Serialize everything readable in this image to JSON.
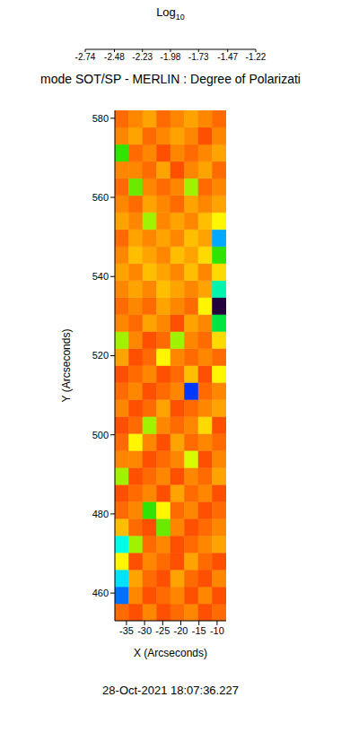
{
  "chart_data": {
    "type": "heatmap",
    "title": "mode SOT/SP - MERLIN : Degree of Polarizati",
    "annotations": [
      "28-Oct-2021 18:07:36.227"
    ],
    "x_label": "X (Arcseconds)",
    "y_label": "Y (Arcseconds)",
    "xlim": [
      -38.2,
      -7.5
    ],
    "ylim": [
      453,
      582
    ],
    "xticks": [
      -35,
      -30,
      -25,
      -20,
      -15,
      -10
    ],
    "yticks": [
      460,
      480,
      500,
      520,
      540,
      560,
      580
    ],
    "x_edges": [
      -38.2,
      -34.36,
      -30.53,
      -26.69,
      -22.85,
      -19.01,
      -15.18,
      -11.34,
      -7.5
    ],
    "y_edges": [
      453,
      457.3,
      461.6,
      465.9,
      470.2,
      474.5,
      478.8,
      483.1,
      487.4,
      491.7,
      496,
      500.3,
      504.6,
      508.9,
      513.2,
      517.5,
      521.8,
      526.1,
      530.4,
      534.7,
      539,
      543.3,
      547.6,
      551.9,
      556.2,
      560.5,
      564.8,
      569.1,
      573.4,
      577.7,
      582
    ],
    "cells": [
      [
        -2.55,
        -2.6,
        -2.5,
        -2.6,
        -2.55,
        -2.5,
        -2.6,
        -2.55
      ],
      [
        -1.7,
        -2.5,
        -2.6,
        -2.55,
        -2.5,
        -2.6,
        -2.5,
        -2.6
      ],
      [
        -1.8,
        -2.45,
        -2.55,
        -2.6,
        -2.45,
        -2.55,
        -2.6,
        -2.5
      ],
      [
        -2.3,
        -2.6,
        -2.5,
        -2.55,
        -2.6,
        -2.45,
        -2.55,
        -2.6
      ],
      [
        -1.85,
        -2.2,
        -2.55,
        -2.5,
        -2.6,
        -2.55,
        -2.5,
        -2.45
      ],
      [
        -2.4,
        -2.55,
        -2.6,
        -2.15,
        -2.5,
        -2.6,
        -2.55,
        -2.5
      ],
      [
        -2.55,
        -2.5,
        -2.1,
        -2.3,
        -2.55,
        -2.5,
        -2.6,
        -2.55
      ],
      [
        -2.6,
        -2.55,
        -2.5,
        -2.6,
        -2.45,
        -2.55,
        -2.5,
        -2.6
      ],
      [
        -2.2,
        -2.6,
        -2.55,
        -2.5,
        -2.6,
        -2.5,
        -2.55,
        -2.45
      ],
      [
        -2.5,
        -2.5,
        -2.6,
        -2.55,
        -2.5,
        -2.25,
        -2.6,
        -2.5
      ],
      [
        -2.55,
        -2.3,
        -2.5,
        -2.6,
        -2.45,
        -2.55,
        -2.5,
        -2.55
      ],
      [
        -2.6,
        -2.55,
        -2.2,
        -2.5,
        -2.55,
        -2.5,
        -2.35,
        -2.6
      ],
      [
        -2.5,
        -2.6,
        -2.55,
        -2.45,
        -2.6,
        -2.55,
        -2.5,
        -2.45
      ],
      [
        -2.55,
        -2.5,
        -2.6,
        -2.55,
        -2.5,
        -1.65,
        -2.55,
        -2.5
      ],
      [
        -2.6,
        -2.55,
        -2.5,
        -2.6,
        -2.55,
        -2.4,
        -2.6,
        -2.3
      ],
      [
        -2.45,
        -2.6,
        -2.55,
        -2.3,
        -2.5,
        -2.55,
        -2.5,
        -2.55
      ],
      [
        -2.2,
        -2.5,
        -2.6,
        -2.55,
        -2.2,
        -2.5,
        -2.55,
        -2.35
      ],
      [
        -2.5,
        -2.55,
        -2.45,
        -2.5,
        -2.6,
        -2.45,
        -2.5,
        -2.0
      ],
      [
        -2.55,
        -2.5,
        -2.55,
        -2.45,
        -2.5,
        -2.55,
        -2.3,
        -1.3
      ],
      [
        -2.5,
        -2.45,
        -2.5,
        -2.4,
        -2.45,
        -2.5,
        -2.45,
        -1.9
      ],
      [
        -2.45,
        -2.5,
        -2.4,
        -2.45,
        -2.5,
        -2.4,
        -2.5,
        -2.35
      ],
      [
        -2.5,
        -2.4,
        -2.45,
        -2.5,
        -2.4,
        -2.45,
        -2.35,
        -2.1
      ],
      [
        -2.55,
        -2.45,
        -2.5,
        -2.45,
        -2.5,
        -2.4,
        -2.45,
        -1.75
      ],
      [
        -2.45,
        -2.5,
        -2.2,
        -2.5,
        -2.45,
        -2.5,
        -2.4,
        -2.3
      ],
      [
        -2.5,
        -2.55,
        -2.45,
        -2.5,
        -2.55,
        -2.45,
        -2.5,
        -2.45
      ],
      [
        -2.55,
        -2.15,
        -2.5,
        -2.55,
        -2.5,
        -2.2,
        -2.55,
        -2.5
      ],
      [
        -2.5,
        -2.5,
        -2.55,
        -2.45,
        -2.6,
        -2.5,
        -2.45,
        -2.55
      ],
      [
        -2.1,
        -2.55,
        -2.5,
        -2.6,
        -2.5,
        -2.55,
        -2.5,
        -2.45
      ],
      [
        -2.5,
        -2.45,
        -2.55,
        -2.5,
        -2.45,
        -2.5,
        -2.6,
        -2.5
      ],
      [
        -2.55,
        -2.5,
        -2.45,
        -2.55,
        -2.5,
        -2.45,
        -2.5,
        -2.55
      ]
    ],
    "colorbar": {
      "label": "Log10",
      "range": [
        -2.74,
        -1.22
      ],
      "ticks": [
        -2.74,
        -2.48,
        -2.23,
        -1.98,
        -1.73,
        -1.47,
        -1.22
      ]
    }
  }
}
